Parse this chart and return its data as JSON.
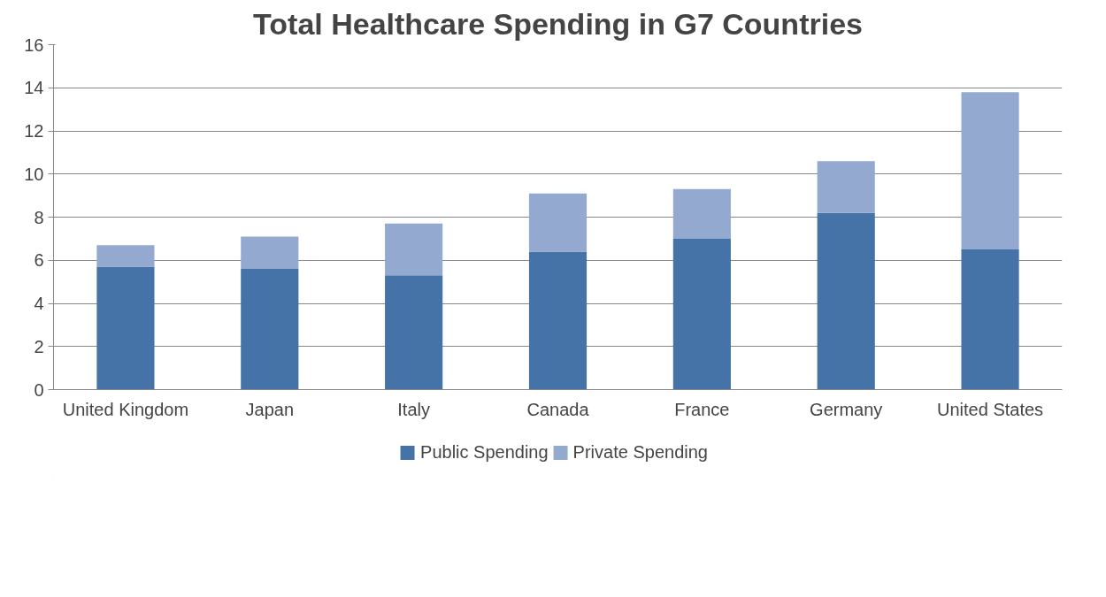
{
  "chart_data": {
    "type": "bar",
    "title": "Total Healthcare Spending in G7 Countries",
    "categories": [
      "United Kingdom",
      "Japan",
      "Italy",
      "Canada",
      "France",
      "Germany",
      "United States"
    ],
    "stacked": true,
    "series": [
      {
        "name": "Public Spending",
        "color": "#4572a7",
        "values": [
          5.7,
          5.6,
          5.3,
          6.4,
          7.0,
          8.2,
          6.5
        ]
      },
      {
        "name": "Private Spending",
        "color": "#94a9d0",
        "values": [
          1.0,
          1.5,
          2.4,
          2.7,
          2.3,
          2.4,
          7.3
        ]
      }
    ],
    "ylim": [
      0,
      16
    ],
    "yticks": [
      0,
      2,
      4,
      6,
      8,
      10,
      12,
      14,
      16
    ],
    "grid": "y",
    "legend": "bottom"
  }
}
